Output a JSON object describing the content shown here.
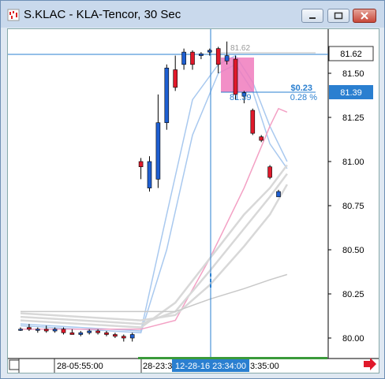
{
  "window": {
    "title": "S.KLAC - KLA-Tencor, 30 Sec",
    "icons": {
      "app": "chart-app-icon",
      "minimize": "minimize-icon",
      "maximize": "maximize-icon",
      "close": "close-icon",
      "scroll": "scroll-right-arrow-icon"
    }
  },
  "colors": {
    "up": "#1f5fd1",
    "down": "#e0192b",
    "crosshair": "#2a7fd0",
    "highlight": "#f07bbd",
    "ma_blue": "#a9c9ef",
    "ma_pink": "#f3a0c4",
    "ma_gray": "#d8d8d8"
  },
  "y_axis": {
    "ticks": [
      "81.50",
      "81.25",
      "81.00",
      "80.75",
      "80.50",
      "80.25",
      "80.00"
    ]
  },
  "price_tags": {
    "top": "81.62",
    "bottom": "81.39"
  },
  "overlay": {
    "top_value": "81.62",
    "change": "$0.23",
    "percent": "0.28 %",
    "left_value": "81.39"
  },
  "x_axis": {
    "label1": "28-05:55:00",
    "label2": "28-23:3",
    "cursor_time": "12-28-16 23:34:00",
    "label3": "3:35:00"
  },
  "chart_data": {
    "type": "candlestick",
    "ylim": [
      79.98,
      81.72
    ],
    "candles": [
      {
        "o": 80.05,
        "h": 80.06,
        "l": 80.04,
        "c": 80.05
      },
      {
        "o": 80.06,
        "h": 80.08,
        "l": 80.04,
        "c": 80.05
      },
      {
        "o": 80.05,
        "h": 80.06,
        "l": 80.03,
        "c": 80.05
      },
      {
        "o": 80.05,
        "h": 80.07,
        "l": 80.03,
        "c": 80.04
      },
      {
        "o": 80.04,
        "h": 80.06,
        "l": 80.03,
        "c": 80.05
      },
      {
        "o": 80.05,
        "h": 80.06,
        "l": 80.02,
        "c": 80.03
      },
      {
        "o": 80.03,
        "h": 80.05,
        "l": 80.02,
        "c": 80.02
      },
      {
        "o": 80.02,
        "h": 80.04,
        "l": 80.01,
        "c": 80.03
      },
      {
        "o": 80.03,
        "h": 80.05,
        "l": 80.02,
        "c": 80.04
      },
      {
        "o": 80.04,
        "h": 80.05,
        "l": 80.02,
        "c": 80.03
      },
      {
        "o": 80.03,
        "h": 80.04,
        "l": 80.01,
        "c": 80.02
      },
      {
        "o": 80.02,
        "h": 80.03,
        "l": 80.0,
        "c": 80.01
      },
      {
        "o": 80.01,
        "h": 80.02,
        "l": 79.98,
        "c": 80.0
      },
      {
        "o": 80.0,
        "h": 80.03,
        "l": 79.98,
        "c": 80.02
      },
      {
        "o": 81.0,
        "h": 81.02,
        "l": 80.9,
        "c": 80.97
      },
      {
        "o": 80.85,
        "h": 81.03,
        "l": 80.83,
        "c": 81.0
      },
      {
        "o": 80.9,
        "h": 81.38,
        "l": 80.85,
        "c": 81.22
      },
      {
        "o": 81.22,
        "h": 81.55,
        "l": 81.18,
        "c": 81.53
      },
      {
        "o": 81.52,
        "h": 81.6,
        "l": 81.4,
        "c": 81.42
      },
      {
        "o": 81.55,
        "h": 81.64,
        "l": 81.52,
        "c": 81.62
      },
      {
        "o": 81.62,
        "h": 81.63,
        "l": 81.52,
        "c": 81.55
      },
      {
        "o": 81.6,
        "h": 81.62,
        "l": 81.58,
        "c": 81.61
      },
      {
        "o": 81.62,
        "h": 81.64,
        "l": 81.6,
        "c": 81.63
      },
      {
        "o": 81.64,
        "h": 81.65,
        "l": 81.5,
        "c": 81.55
      },
      {
        "o": 81.57,
        "h": 81.68,
        "l": 81.55,
        "c": 81.6
      },
      {
        "o": 81.58,
        "h": 81.6,
        "l": 81.35,
        "c": 81.38
      },
      {
        "o": 81.37,
        "h": 81.4,
        "l": 81.33,
        "c": 81.39
      },
      {
        "o": 81.29,
        "h": 81.3,
        "l": 81.15,
        "c": 81.16
      },
      {
        "o": 81.14,
        "h": 81.15,
        "l": 81.11,
        "c": 81.12
      },
      {
        "o": 80.97,
        "h": 80.98,
        "l": 80.9,
        "c": 80.91
      },
      {
        "o": 80.8,
        "h": 80.84,
        "l": 80.8,
        "c": 80.83
      }
    ],
    "moving_averages": [
      {
        "color": "#a9c9ef",
        "points": [
          [
            0,
            80.08
          ],
          [
            14,
            80.04
          ],
          [
            17,
            80.7
          ],
          [
            20,
            81.35
          ],
          [
            23,
            81.55
          ],
          [
            25,
            81.6
          ],
          [
            27,
            81.45
          ],
          [
            29,
            81.2
          ],
          [
            31,
            81.0
          ]
        ]
      },
      {
        "color": "#a9c9ef",
        "points": [
          [
            0,
            80.07
          ],
          [
            14,
            80.03
          ],
          [
            17,
            80.5
          ],
          [
            20,
            81.15
          ],
          [
            23,
            81.5
          ],
          [
            25,
            81.55
          ],
          [
            27,
            81.4
          ],
          [
            29,
            81.1
          ],
          [
            31,
            80.96
          ]
        ]
      },
      {
        "color": "#f3a0c4",
        "points": [
          [
            0,
            80.05
          ],
          [
            14,
            80.05
          ],
          [
            18,
            80.1
          ],
          [
            22,
            80.45
          ],
          [
            26,
            80.85
          ],
          [
            29,
            81.2
          ],
          [
            30,
            81.3
          ],
          [
            31,
            81.28
          ]
        ]
      },
      {
        "color": "#d8d8d8",
        "points": [
          [
            0,
            80.1
          ],
          [
            14,
            80.06
          ],
          [
            18,
            80.2
          ],
          [
            22,
            80.45
          ],
          [
            26,
            80.7
          ],
          [
            29,
            80.85
          ],
          [
            31,
            80.98
          ]
        ]
      },
      {
        "color": "#d8d8d8",
        "points": [
          [
            0,
            80.12
          ],
          [
            14,
            80.08
          ],
          [
            18,
            80.15
          ],
          [
            22,
            80.38
          ],
          [
            26,
            80.62
          ],
          [
            29,
            80.8
          ],
          [
            31,
            80.93
          ]
        ]
      },
      {
        "color": "#d8d8d8",
        "points": [
          [
            0,
            80.14
          ],
          [
            14,
            80.1
          ],
          [
            18,
            80.13
          ],
          [
            22,
            80.3
          ],
          [
            26,
            80.52
          ],
          [
            29,
            80.7
          ],
          [
            31,
            80.87
          ]
        ]
      },
      {
        "color": "#c8c8c8",
        "points": [
          [
            0,
            80.15
          ],
          [
            14,
            80.15
          ],
          [
            18,
            80.15
          ],
          [
            22,
            80.22
          ],
          [
            26,
            80.28
          ],
          [
            29,
            80.33
          ],
          [
            31,
            80.36
          ]
        ]
      }
    ]
  }
}
